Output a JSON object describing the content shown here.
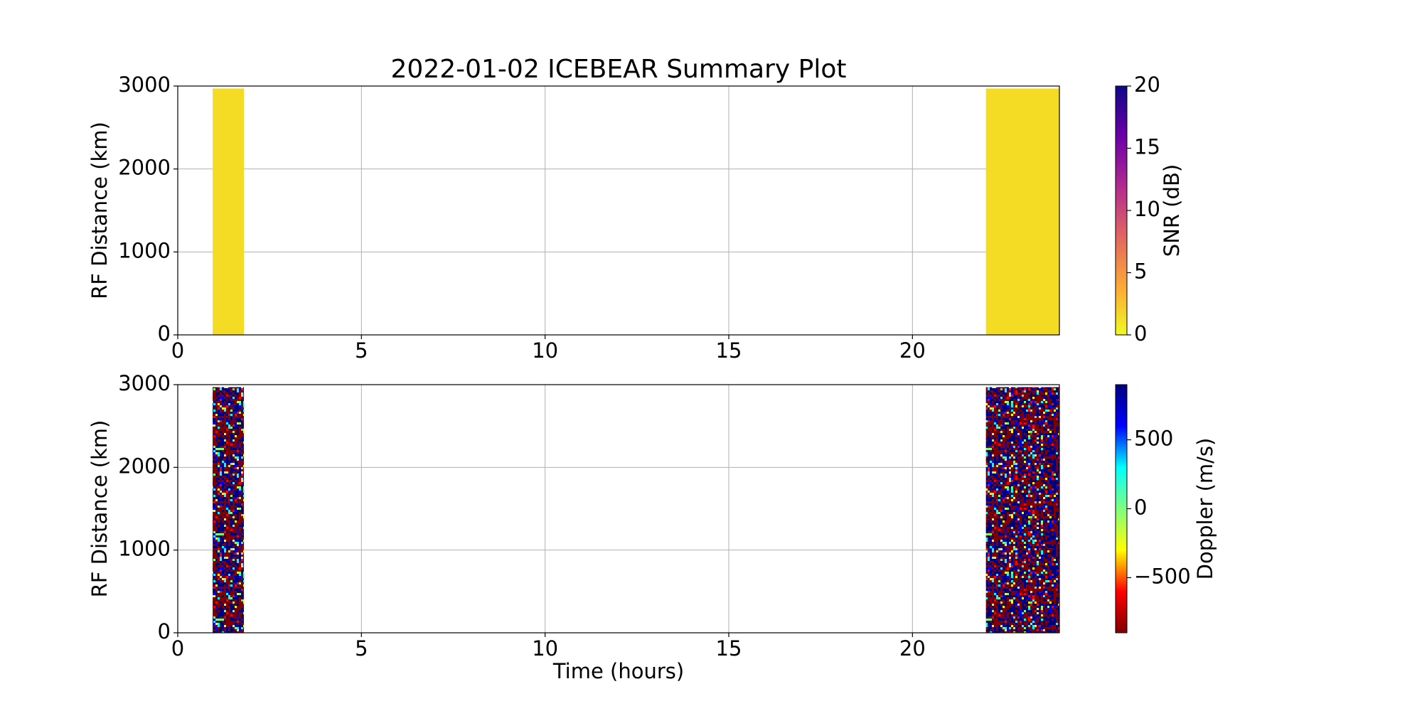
{
  "chart_data": [
    {
      "type": "heatmap",
      "title": "2022-01-02 ICEBEAR Summary Plot",
      "ylabel": "RF Distance (km)",
      "xlim": [
        0,
        24
      ],
      "xticks": [
        0,
        5,
        10,
        15,
        20
      ],
      "ylim": [
        0,
        3000
      ],
      "yticks": [
        0,
        1000,
        2000,
        3000
      ],
      "grid": true,
      "blocks": [
        {
          "x": [
            0.95,
            1.8
          ],
          "y": [
            0,
            2970
          ]
        },
        {
          "x": [
            22,
            24
          ],
          "y": [
            0,
            2970
          ]
        }
      ],
      "fill": "solid",
      "color": "#f5dc24",
      "colorbar": {
        "label": "SNR (dB)",
        "lim": [
          0,
          20
        ],
        "ticks": [
          0,
          5,
          10,
          15,
          20
        ],
        "colors": [
          "#f0f921",
          "#fca636",
          "#e16462",
          "#b12a90",
          "#6a00a8",
          "#0d0887"
        ]
      }
    },
    {
      "type": "heatmap",
      "ylabel": "RF Distance (km)",
      "xlabel": "Time (hours)",
      "xlim": [
        0,
        24
      ],
      "xticks": [
        0,
        5,
        10,
        15,
        20
      ],
      "ylim": [
        0,
        3000
      ],
      "yticks": [
        0,
        1000,
        2000,
        3000
      ],
      "grid": true,
      "blocks": [
        {
          "x": [
            0.95,
            1.8
          ],
          "y": [
            0,
            2970
          ]
        },
        {
          "x": [
            22,
            24
          ],
          "y": [
            0,
            2970
          ]
        }
      ],
      "fill": "texture",
      "colorbar": {
        "label": "Doppler (m/s)",
        "lim": [
          -900,
          900
        ],
        "ticks": [
          {
            "value": -500,
            "label": "−500"
          },
          0,
          500
        ],
        "colors": [
          "#7f0000",
          "#ff0000",
          "#ffff00",
          "#7fff7f",
          "#00ffff",
          "#0000ff",
          "#00007f"
        ]
      }
    }
  ]
}
